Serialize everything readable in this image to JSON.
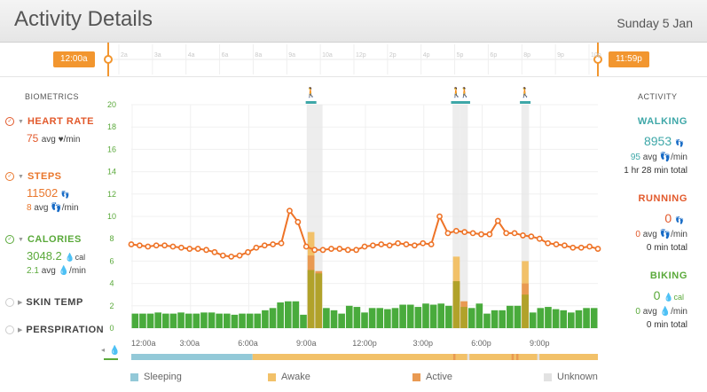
{
  "header": {
    "title": "Activity Details",
    "date": "Sunday 5 Jan"
  },
  "timeline": {
    "start_label": "12:00a",
    "end_label": "11:59p",
    "ticks": [
      "2a",
      "3a",
      "4a",
      "6a",
      "8a",
      "9a",
      "10a",
      "12p",
      "2p",
      "4p",
      "5p",
      "6p",
      "8p",
      "9p",
      "10p"
    ]
  },
  "biometrics": {
    "heading": "BIOMETRICS",
    "heart_rate": {
      "name": "HEART RATE",
      "value": "75",
      "sub": "avg ♥/min"
    },
    "steps": {
      "name": "STEPS",
      "value": "11502",
      "value_unit": "👣",
      "sub_value": "8",
      "sub": "avg 👣/min"
    },
    "calories": {
      "name": "CALORIES",
      "value": "3048.2",
      "value_unit": "💧cal",
      "sub_value": "2.1",
      "sub": "avg 💧/min"
    },
    "skin_temp": {
      "name": "SKIN TEMP"
    },
    "perspiration": {
      "name": "PERSPIRATION"
    }
  },
  "activity": {
    "heading": "ACTIVITY",
    "walking": {
      "name": "WALKING",
      "value": "8953",
      "avg": "95",
      "avg_unit": "avg 👣/min",
      "total": "1 hr 28 min total"
    },
    "running": {
      "name": "RUNNING",
      "value": "0",
      "avg": "0",
      "avg_unit": "avg 👣/min",
      "total": "0 min total"
    },
    "biking": {
      "name": "BIKING",
      "value": "0",
      "value_unit": "💧cal",
      "avg": "0",
      "avg_unit": "avg 💧/min",
      "total": "0 min total"
    }
  },
  "legend": {
    "sleeping": "Sleeping",
    "awake": "Awake",
    "active": "Active",
    "unknown": "Unknown"
  },
  "colors": {
    "orange": "#ee7327",
    "green": "#49ab3c",
    "olive": "#b1a22a",
    "sleeping": "#93c9d8",
    "awake": "#f2c169",
    "active": "#e99a52",
    "unknown": "#e2e2e2",
    "teal": "#3ea7a8"
  },
  "chart_data": {
    "type": "bar",
    "x_tick_labels": [
      "12:00a",
      "3:00a",
      "6:00a",
      "9:00a",
      "12:00p",
      "3:00p",
      "6:00p",
      "9:00p"
    ],
    "y_tick_labels": [
      "0",
      "2",
      "4",
      "6",
      "8",
      "10",
      "12",
      "14",
      "16",
      "18",
      "20"
    ],
    "ylim": [
      0,
      20
    ],
    "heart_rate_line": [
      7.5,
      7.4,
      7.3,
      7.4,
      7.4,
      7.3,
      7.2,
      7.1,
      7.1,
      7.0,
      6.8,
      6.5,
      6.4,
      6.5,
      6.8,
      7.2,
      7.4,
      7.5,
      7.6,
      10.5,
      9.5,
      7.3,
      7.0,
      7.0,
      7.1,
      7.1,
      7.0,
      7.0,
      7.3,
      7.4,
      7.5,
      7.4,
      7.6,
      7.5,
      7.4,
      7.6,
      7.5,
      10.0,
      8.5,
      8.7,
      8.6,
      8.5,
      8.4,
      8.4,
      9.6,
      8.5,
      8.5,
      8.3,
      8.2,
      8.0,
      7.6,
      7.5,
      7.4,
      7.2,
      7.2,
      7.3,
      7.1
    ],
    "green_bars": [
      1.3,
      1.3,
      1.3,
      1.4,
      1.3,
      1.3,
      1.4,
      1.3,
      1.3,
      1.4,
      1.4,
      1.3,
      1.3,
      1.2,
      1.3,
      1.3,
      1.3,
      1.6,
      1.8,
      2.3,
      2.4,
      2.4,
      1.2,
      5.2,
      4.9,
      1.8,
      1.6,
      1.3,
      2.0,
      1.9,
      1.4,
      1.8,
      1.8,
      1.7,
      1.8,
      2.1,
      2.1,
      1.9,
      2.2,
      2.1,
      2.2,
      2.0,
      4.2,
      1.9,
      1.8,
      2.2,
      1.3,
      1.6,
      1.6,
      2.0,
      2.0,
      3.0,
      1.4,
      1.8,
      1.9,
      1.7,
      1.6,
      1.4,
      1.6,
      1.8,
      1.8
    ],
    "activity_bars": [
      {
        "index": 23,
        "awake_top": 8.6,
        "active_top": 6.5
      },
      {
        "index": 24,
        "awake_top": 5.1,
        "active_top": 5.1
      },
      {
        "index": 42,
        "awake_top": 6.4,
        "active_top": 4.2
      },
      {
        "index": 43,
        "awake_top": 2.4,
        "active_top": 2.4
      },
      {
        "index": 51,
        "awake_top": 6.0,
        "active_top": 4.0
      }
    ],
    "activity_markers": [
      {
        "position": "9:00a",
        "label": "walk"
      },
      {
        "position": "3:15p",
        "label": "walk"
      },
      {
        "position": "7:15p",
        "label": "walk"
      }
    ],
    "state_bar": [
      {
        "state": "sleeping",
        "from": 0.0,
        "to": 0.26
      },
      {
        "state": "awake",
        "from": 0.26,
        "to": 1.0
      }
    ]
  }
}
